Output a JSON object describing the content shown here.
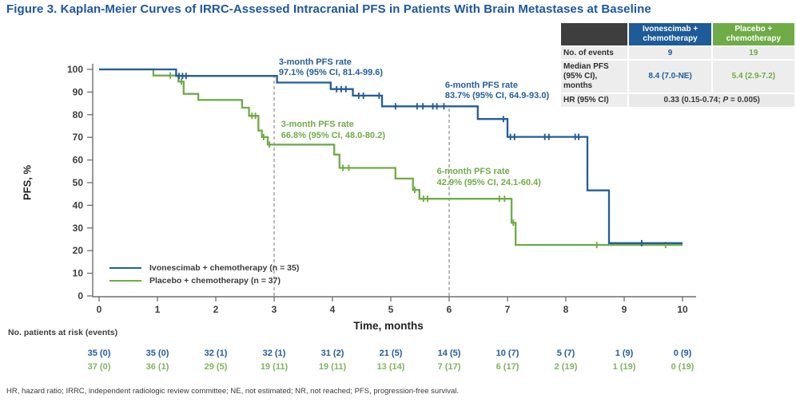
{
  "title": "Figure 3. Kaplan-Meier Curves of IRRC-Assessed Intracranial PFS in Patients With Brain Metastases at Baseline",
  "footnote": "HR, hazard ratio; IRRC, independent radiologic review committee; NE, not estimated; NR, not reached; PFS, progression-free survival.",
  "summary_table": {
    "col_headers": [
      "Ivonescimab + chemotherapy",
      "Placebo + chemotherapy"
    ],
    "rows": [
      {
        "label": "No. of events",
        "ivo": "9",
        "pbo": "19"
      },
      {
        "label_line1": "Median PFS",
        "label_line2": "(95% CI), months",
        "ivo": "8.4 (7.0-NE)",
        "pbo": "5.4 (2.9-7.2)"
      },
      {
        "label": "HR (95% CI)",
        "value_pre": "0.33 (0.15-0.74; ",
        "value_p": "P",
        "value_post": " = 0.005)"
      }
    ]
  },
  "risk_table": {
    "label": "No. patients at risk (events)",
    "months": [
      0,
      1,
      2,
      3,
      4,
      5,
      6,
      7,
      8,
      9,
      10
    ],
    "rows": [
      {
        "name": "Ivonescimab + chemotherapy",
        "color": "#225d9b",
        "values": [
          "35 (0)",
          "35 (0)",
          "32 (1)",
          "32 (1)",
          "31 (2)",
          "21 (5)",
          "14 (5)",
          "10 (7)",
          "5 (7)",
          "1 (9)",
          "0 (9)"
        ]
      },
      {
        "name": "Placebo + chemotherapy",
        "color": "#7cb661",
        "values": [
          "37 (0)",
          "36 (1)",
          "29 (5)",
          "19 (11)",
          "19 (11)",
          "13 (14)",
          "7 (17)",
          "6 (17)",
          "2 (19)",
          "1 (19)",
          "0 (19)"
        ]
      }
    ]
  },
  "chart_data": {
    "type": "line",
    "subtype": "kaplan-meier-step",
    "title": "",
    "xlabel": "Time, months",
    "ylabel": "PFS, %",
    "xlim": [
      0,
      10
    ],
    "ylim": [
      0,
      100
    ],
    "xticks": [
      0,
      1,
      2,
      3,
      4,
      5,
      6,
      7,
      8,
      9,
      10
    ],
    "yticks": [
      0,
      10,
      20,
      30,
      40,
      50,
      60,
      70,
      80,
      90,
      100
    ],
    "grid": false,
    "legend_position": "inside-lower-left",
    "reference_lines": [
      {
        "x": 3,
        "y_top": 97.1
      },
      {
        "x": 6,
        "y_top": 83.7
      }
    ],
    "series": [
      {
        "name": "Ivonescimab + chemotherapy (n = 35)",
        "color": "#225d9b",
        "step_points": [
          [
            0,
            100
          ],
          [
            1.32,
            100
          ],
          [
            1.32,
            97.1
          ],
          [
            3.05,
            97.1
          ],
          [
            3.05,
            94.2
          ],
          [
            3.97,
            94.2
          ],
          [
            3.97,
            91.3
          ],
          [
            4.35,
            91.3
          ],
          [
            4.35,
            88.4
          ],
          [
            4.85,
            88.4
          ],
          [
            4.85,
            83.7
          ],
          [
            6.49,
            83.7
          ],
          [
            6.49,
            78.1
          ],
          [
            7.0,
            78.1
          ],
          [
            7.0,
            70.2
          ],
          [
            8.37,
            70.2
          ],
          [
            8.37,
            46.6
          ],
          [
            8.74,
            46.6
          ],
          [
            8.74,
            23.3
          ],
          [
            10,
            23.3
          ]
        ],
        "censor_marks": [
          [
            1.37,
            97.1
          ],
          [
            1.43,
            97.1
          ],
          [
            1.49,
            97.1
          ],
          [
            4.07,
            91.3
          ],
          [
            4.15,
            91.3
          ],
          [
            4.23,
            91.3
          ],
          [
            4.45,
            88.4
          ],
          [
            4.53,
            88.4
          ],
          [
            4.8,
            88.4
          ],
          [
            5.08,
            83.7
          ],
          [
            5.45,
            83.7
          ],
          [
            5.55,
            83.7
          ],
          [
            5.72,
            83.7
          ],
          [
            5.79,
            83.7
          ],
          [
            5.91,
            83.7
          ],
          [
            6.93,
            78.1
          ],
          [
            7.05,
            70.2
          ],
          [
            7.12,
            70.2
          ],
          [
            7.64,
            70.2
          ],
          [
            7.71,
            70.2
          ],
          [
            8.16,
            70.2
          ],
          [
            8.22,
            70.2
          ],
          [
            9.3,
            23.3
          ]
        ]
      },
      {
        "name": "Placebo + chemotherapy (n = 37)",
        "color": "#6fac47",
        "step_points": [
          [
            0,
            100
          ],
          [
            0.93,
            100
          ],
          [
            0.93,
            97.3
          ],
          [
            1.36,
            97.3
          ],
          [
            1.36,
            94.6
          ],
          [
            1.45,
            94.6
          ],
          [
            1.45,
            89.2
          ],
          [
            1.7,
            89.2
          ],
          [
            1.7,
            86.5
          ],
          [
            2.45,
            86.5
          ],
          [
            2.45,
            83.1
          ],
          [
            2.57,
            83.1
          ],
          [
            2.57,
            79.5
          ],
          [
            2.73,
            79.5
          ],
          [
            2.73,
            73.0
          ],
          [
            2.79,
            73.0
          ],
          [
            2.79,
            70.1
          ],
          [
            2.89,
            70.1
          ],
          [
            2.89,
            66.8
          ],
          [
            4.03,
            66.8
          ],
          [
            4.03,
            62.4
          ],
          [
            4.12,
            62.4
          ],
          [
            4.12,
            56.5
          ],
          [
            5.08,
            56.5
          ],
          [
            5.08,
            51.8
          ],
          [
            5.38,
            51.8
          ],
          [
            5.38,
            46.8
          ],
          [
            5.49,
            46.8
          ],
          [
            5.49,
            42.9
          ],
          [
            7.07,
            42.9
          ],
          [
            7.07,
            32.3
          ],
          [
            7.14,
            32.3
          ],
          [
            7.14,
            22.5
          ],
          [
            10,
            22.5
          ]
        ],
        "censor_marks": [
          [
            1.22,
            97.3
          ],
          [
            1.41,
            94.6
          ],
          [
            2.62,
            79.5
          ],
          [
            2.68,
            79.5
          ],
          [
            2.82,
            70.1
          ],
          [
            2.92,
            66.8
          ],
          [
            4.18,
            56.5
          ],
          [
            4.28,
            56.5
          ],
          [
            5.41,
            46.8
          ],
          [
            5.56,
            42.9
          ],
          [
            5.63,
            42.9
          ],
          [
            6.86,
            42.9
          ],
          [
            6.95,
            42.9
          ],
          [
            7.1,
            32.3
          ],
          [
            8.53,
            22.5
          ],
          [
            9.71,
            22.5
          ]
        ]
      }
    ],
    "annotations": [
      {
        "id": "ivo-3month",
        "line1": "3-month PFS rate",
        "line2": "97.1% (95% CI, 81.4-99.6)",
        "month": 3.08,
        "pct": 105.4,
        "color": "#225d9b"
      },
      {
        "id": "ivo-6month",
        "line1": "6-month PFS rate",
        "line2": "83.7% (95% CI, 64.9-93.0)",
        "month": 5.93,
        "pct": 95.2,
        "color": "#225d9b"
      },
      {
        "id": "pbo-3month",
        "line1": "3-month PFS rate",
        "line2": "66.8% (95% CI, 48.0-80.2)",
        "month": 3.12,
        "pct": 77.8,
        "color": "#6fac47"
      },
      {
        "id": "pbo-6month",
        "line1": "6-month PFS rate",
        "line2": "42.9% (95% CI, 24.1-60.4)",
        "month": 5.79,
        "pct": 57.0,
        "color": "#6fac47"
      }
    ]
  }
}
